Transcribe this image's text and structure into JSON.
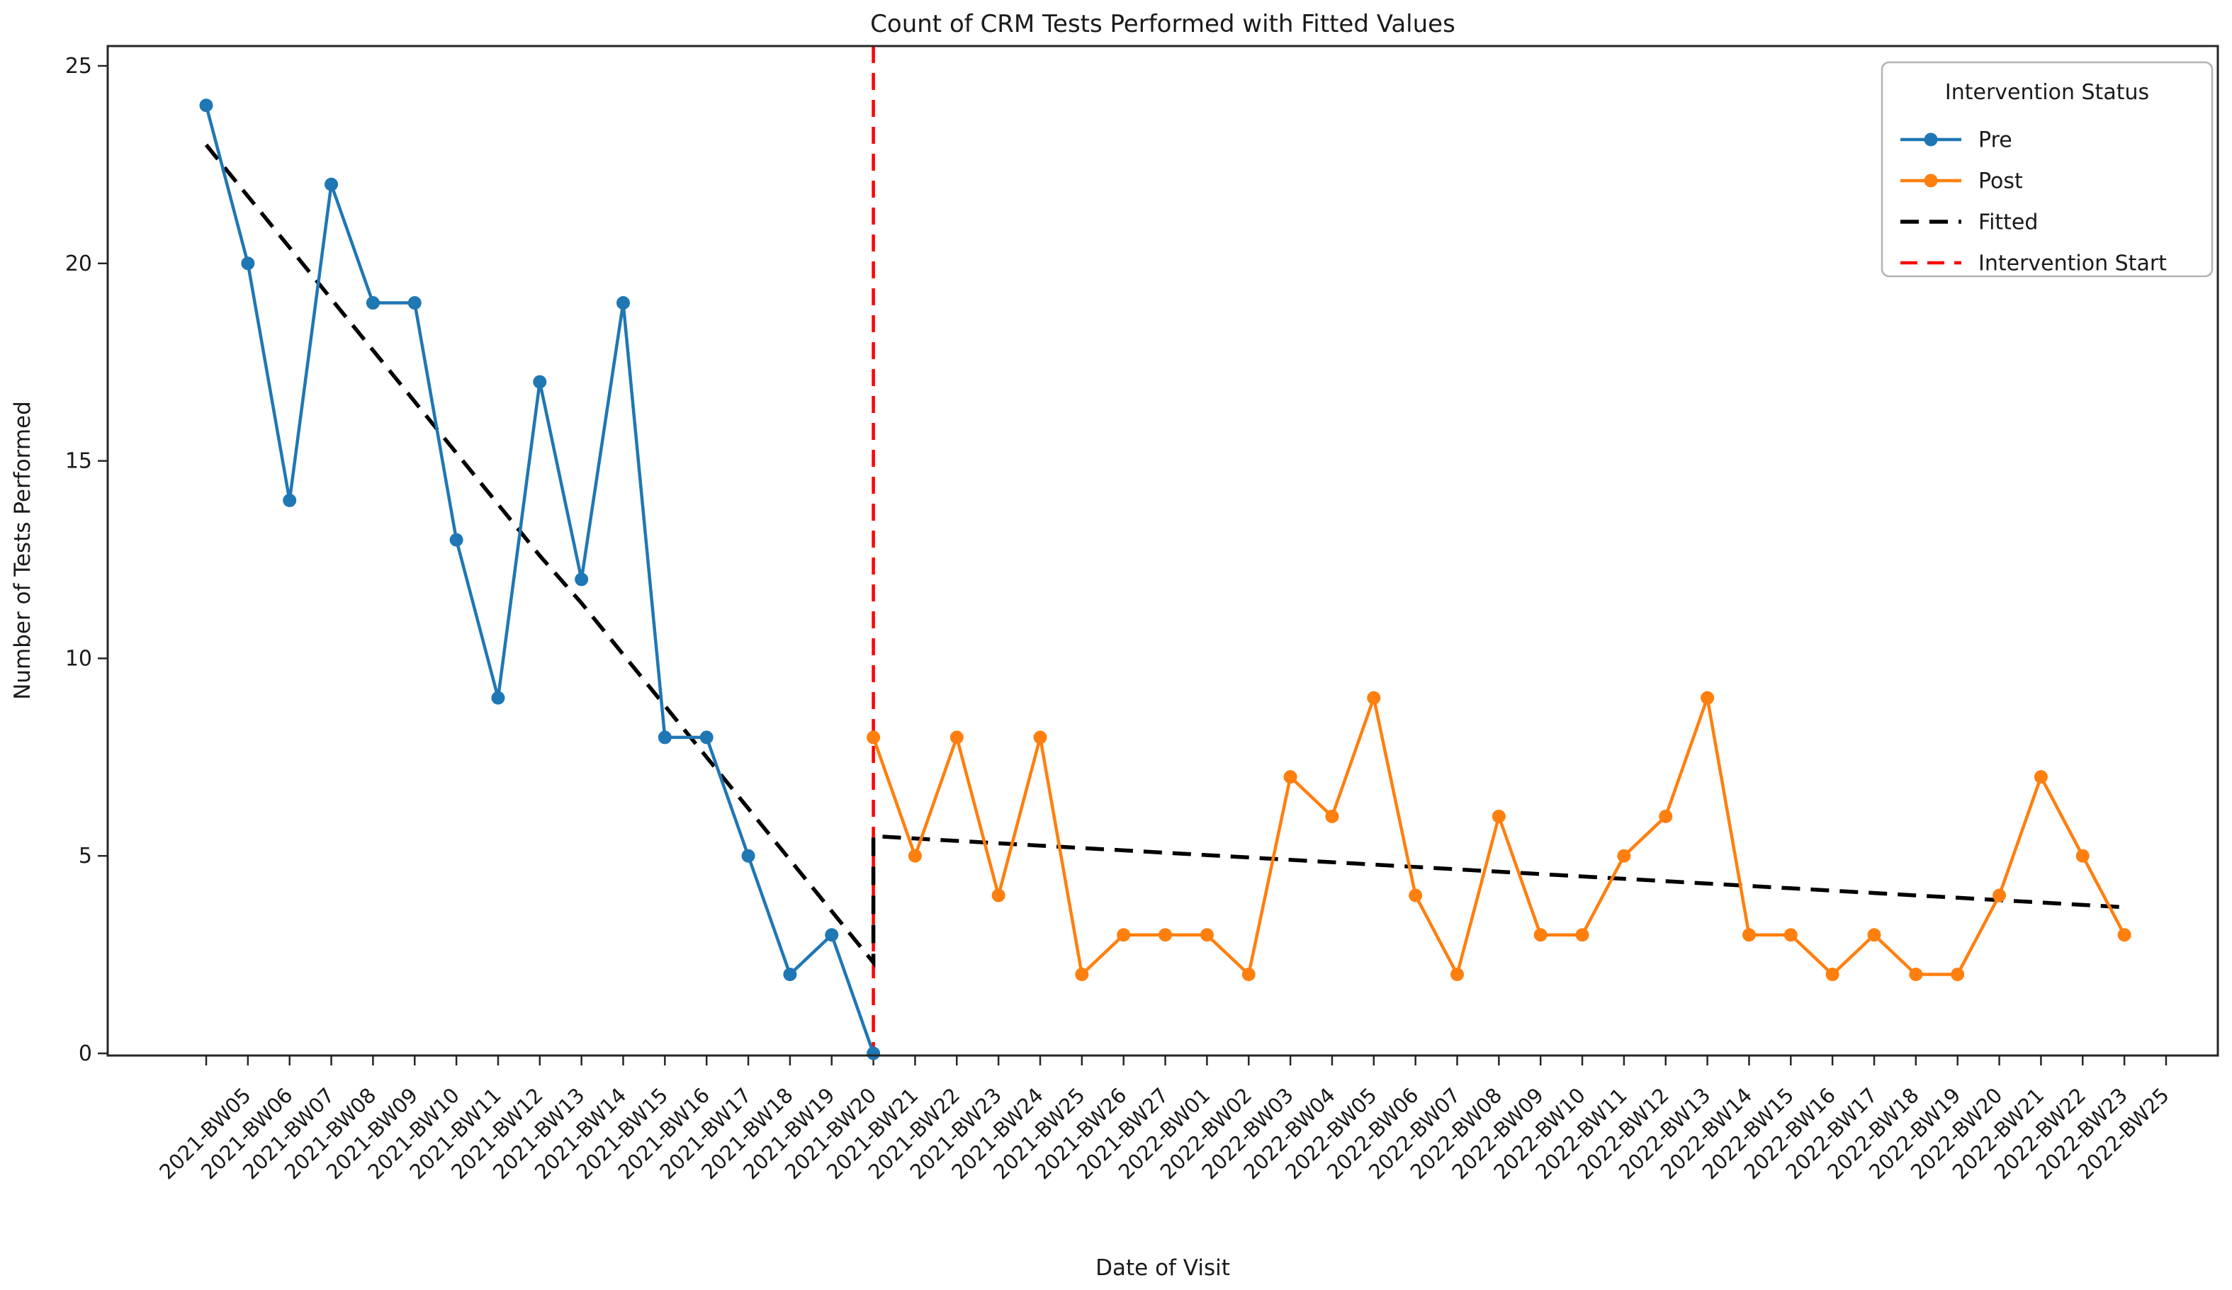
{
  "title": "Count of CRM Tests Performed with Fitted Values",
  "xlabel": "Date of Visit",
  "ylabel": "Number of Tests Performed",
  "legend": {
    "title": "Intervention Status",
    "entries": [
      {
        "label": "Pre",
        "color": "#1f77b4",
        "dashed": false,
        "marker": true
      },
      {
        "label": "Post",
        "color": "#ff7f0e",
        "dashed": false,
        "marker": true
      },
      {
        "label": "Fitted",
        "color": "#000000",
        "dashed": true,
        "marker": false
      },
      {
        "label": "Intervention Start",
        "color": "#ff0000",
        "dashed": true,
        "marker": false
      }
    ]
  },
  "colors": {
    "pre": "#1f77b4",
    "post": "#ff7f0e",
    "fitted": "#000000",
    "intervention": "#ff0000",
    "spine": "#262626",
    "text": "#1a1a1a"
  },
  "chart_data": {
    "type": "line",
    "categories": [
      "",
      "2021-BW05",
      "2021-BW06",
      "2021-BW07",
      "2021-BW08",
      "2021-BW09",
      "2021-BW10",
      "2021-BW11",
      "2021-BW12",
      "2021-BW13",
      "2021-BW14",
      "2021-BW15",
      "2021-BW16",
      "2021-BW17",
      "2021-BW18",
      "2021-BW19",
      "2021-BW20",
      "2021-BW21",
      "2021-BW22",
      "2021-BW23",
      "2021-BW24",
      "2021-BW25",
      "2021-BW26",
      "2021-BW27",
      "2022-BW01",
      "2022-BW02",
      "2022-BW03",
      "2022-BW04",
      "2022-BW05",
      "2022-BW06",
      "2022-BW07",
      "2022-BW08",
      "2022-BW09",
      "2022-BW10",
      "2022-BW11",
      "2022-BW12",
      "2022-BW13",
      "2022-BW14",
      "2022-BW15",
      "2022-BW16",
      "2022-BW17",
      "2022-BW18",
      "2022-BW19",
      "2022-BW20",
      "2022-BW21",
      "2022-BW22",
      "2022-BW23",
      "2022-BW25"
    ],
    "series": [
      {
        "name": "Pre",
        "start_index": 0,
        "marker": true,
        "dashed": false,
        "values": [
          24,
          20,
          14,
          22,
          19,
          19,
          13,
          9,
          17,
          12,
          19,
          8,
          8,
          5,
          2,
          3,
          0
        ]
      },
      {
        "name": "Post",
        "start_index": 16,
        "marker": true,
        "dashed": false,
        "values": [
          8,
          5,
          8,
          4,
          8,
          2,
          3,
          3,
          3,
          2,
          7,
          6,
          9,
          4,
          2,
          6,
          3,
          3,
          5,
          6,
          9,
          3,
          3,
          2,
          3,
          2,
          2,
          4,
          7,
          5,
          3
        ]
      },
      {
        "name": "Fitted",
        "marker": false,
        "dashed": true,
        "pre_segment": {
          "start_index": 0,
          "values": [
            23.0,
            21.7,
            20.4,
            19.1,
            17.8,
            16.5,
            15.2,
            13.9,
            12.6,
            11.4,
            10.1,
            8.8,
            7.5,
            6.2,
            4.9,
            3.6,
            2.3
          ]
        },
        "post_segment": {
          "start_index": 16,
          "values": [
            5.5,
            5.44,
            5.38,
            5.32,
            5.26,
            5.2,
            5.14,
            5.08,
            5.02,
            4.96,
            4.9,
            4.84,
            4.78,
            4.72,
            4.66,
            4.6,
            4.54,
            4.48,
            4.42,
            4.36,
            4.3,
            4.24,
            4.18,
            4.12,
            4.06,
            4.0,
            3.94,
            3.88,
            3.82,
            3.76,
            3.7
          ]
        }
      }
    ],
    "intervention_index": 16,
    "yticks": [
      0,
      5,
      10,
      15,
      20,
      25
    ],
    "ylim": [
      -0.1,
      25.5
    ],
    "grid": false,
    "legend_position": "upper right"
  }
}
